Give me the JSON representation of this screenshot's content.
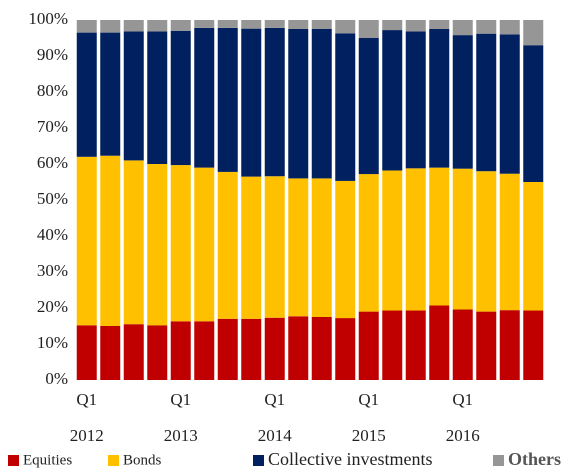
{
  "chart_data": {
    "type": "stacked_bar",
    "categories": [
      "Q1",
      null,
      null,
      null,
      "Q1",
      null,
      null,
      null,
      "Q1",
      null,
      null,
      null,
      "Q1",
      null,
      null,
      null,
      "Q1",
      null,
      null,
      null
    ],
    "year_labels": [
      "2012",
      "2013",
      "2014",
      "2015",
      "2016"
    ],
    "series": [
      {
        "name": "Equities",
        "color": "#c00000",
        "values": [
          15.2,
          15,
          15.5,
          15.2,
          16.3,
          16.3,
          17,
          17,
          17.3,
          17.7,
          17.5,
          17.2,
          19,
          19.3,
          19.3,
          20.7,
          19.6,
          19,
          19.4,
          19.3
        ]
      },
      {
        "name": "Bonds",
        "color": "#ffc000",
        "values": [
          46.8,
          47.3,
          45.5,
          44.8,
          43.4,
          42.7,
          40.8,
          39.5,
          39.3,
          38.3,
          38.5,
          38.1,
          38.2,
          38.9,
          39.5,
          38.3,
          39.1,
          39,
          37.9,
          35.7
        ]
      },
      {
        "name": "Collective investments",
        "color": "#002060",
        "values": [
          34.5,
          34.2,
          35.8,
          36.8,
          37.3,
          38.8,
          40,
          41.1,
          41.2,
          41.5,
          41.5,
          41,
          37.8,
          39,
          38,
          38.5,
          37.1,
          38.2,
          38.7,
          38
        ]
      },
      {
        "name": "Others",
        "color": "#969696",
        "values": [
          3.5,
          3.5,
          3.2,
          3.2,
          3,
          2.2,
          2.2,
          2.4,
          2.2,
          2.5,
          2.5,
          3.7,
          5,
          2.8,
          3.2,
          2.5,
          4.2,
          3.8,
          4,
          7
        ]
      }
    ],
    "ylim": [
      0,
      100
    ],
    "yticks": [
      {
        "value": 0,
        "label": "0%"
      },
      {
        "value": 10,
        "label": "10%"
      },
      {
        "value": 20,
        "label": "20%"
      },
      {
        "value": 30,
        "label": "30%"
      },
      {
        "value": 40,
        "label": "40%"
      },
      {
        "value": 50,
        "label": "50%"
      },
      {
        "value": 60,
        "label": "60%"
      },
      {
        "value": 70,
        "label": "70%"
      },
      {
        "value": 80,
        "label": "80%"
      },
      {
        "value": 90,
        "label": "90%"
      },
      {
        "value": 100,
        "label": "100%"
      }
    ],
    "grid": false,
    "legend": "bottom"
  }
}
